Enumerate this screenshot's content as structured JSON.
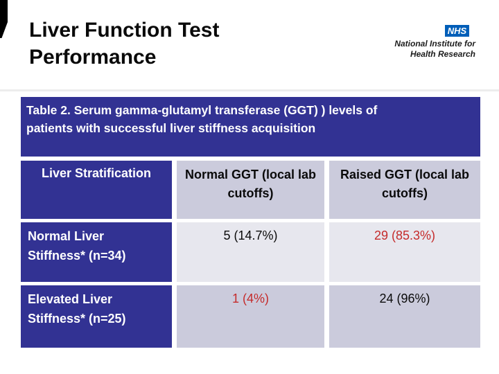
{
  "slide": {
    "title_line1": "Liver Function Test",
    "title_line2": "Performance"
  },
  "logo": {
    "nhs_label": "NHS",
    "org_line1": "National Institute for",
    "org_line2": "Health Research",
    "nhs_blue": "#005EB8"
  },
  "table": {
    "caption_line1": "Table 2. Serum gamma-glutamyl transferase (GGT) ) levels of",
    "caption_line2": "patients with successful liver stiffness acquisition",
    "columns": {
      "stratification": "Liver Stratification",
      "normal_ggt_line1": "Normal GGT (local lab",
      "normal_ggt_line2": "cutoffs)",
      "raised_ggt_line1": "Raised GGT (local lab",
      "raised_ggt_line2": "cutoffs)"
    },
    "rows": [
      {
        "label_line1": "Normal Liver",
        "label_line2": "Stiffness* (n=34)",
        "normal_ggt": "5 (14.7%)",
        "normal_ggt_color": "#0a0a0a",
        "raised_ggt": "29 (85.3%)",
        "raised_ggt_color": "#c52b2b"
      },
      {
        "label_line1": "Elevated Liver",
        "label_line2": "Stiffness* (n=25)",
        "normal_ggt": "1 (4%)",
        "normal_ggt_color": "#c52b2b",
        "raised_ggt": "24 (96%)",
        "raised_ggt_color": "#0a0a0a"
      }
    ],
    "colors": {
      "band_indigo": "#323293",
      "cell_light": "#e7e7ee",
      "cell_mid": "#cbcbdc",
      "highlight_red": "#c52b2b"
    }
  }
}
